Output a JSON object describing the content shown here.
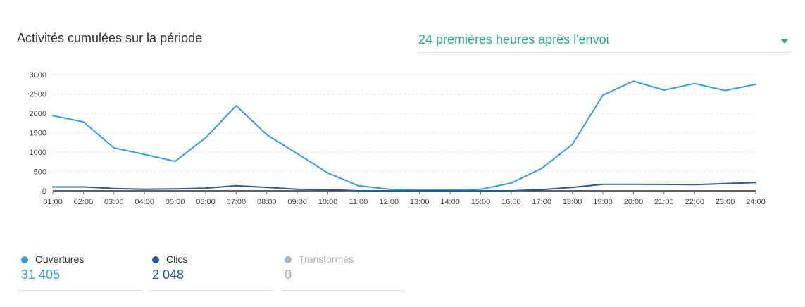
{
  "header": {
    "title": "Activités cumulées sur la période",
    "period": {
      "selected": "24 premières heures après l'envoi",
      "icon": "chevron-down-icon"
    }
  },
  "chart_data": {
    "type": "line",
    "title": "Activités cumulées sur la période",
    "xlabel": "",
    "ylabel": "",
    "categories": [
      "01:00",
      "02:00",
      "03:00",
      "04:00",
      "05:00",
      "06:00",
      "07:00",
      "08:00",
      "09:00",
      "10:00",
      "11:00",
      "12:00",
      "13:00",
      "14:00",
      "15:00",
      "16:00",
      "17:00",
      "18:00",
      "19:00",
      "20:00",
      "21:00",
      "22:00",
      "23:00",
      "24:00"
    ],
    "yticks": [
      "0",
      "500",
      "1000",
      "1500",
      "2000",
      "2500",
      "3000"
    ],
    "ylim": [
      0,
      3000
    ],
    "grid": true,
    "series": [
      {
        "name": "Ouvertures",
        "color": "#3a9be2",
        "values": [
          1940,
          1780,
          1110,
          940,
          760,
          1370,
          2200,
          1450,
          960,
          460,
          130,
          40,
          20,
          20,
          40,
          200,
          580,
          1200,
          2470,
          2830,
          2600,
          2770,
          2590,
          2750
        ]
      },
      {
        "name": "Clics",
        "color": "#2a5b8c",
        "values": [
          100,
          100,
          60,
          40,
          50,
          70,
          130,
          90,
          40,
          30,
          0,
          0,
          0,
          0,
          0,
          0,
          30,
          90,
          170,
          170,
          165,
          160,
          185,
          215
        ]
      }
    ]
  },
  "legend": [
    {
      "name": "Ouvertures",
      "total": "31 405",
      "color": "#3a9be2",
      "total_color": "#3a9be2",
      "muted": false
    },
    {
      "name": "Clics",
      "total": "2 048",
      "color": "#2a5b8c",
      "total_color": "#2a5b8c",
      "muted": false
    },
    {
      "name": "Transformés",
      "total": "0",
      "color": "#a9b3bd",
      "total_color": "#aab2bb",
      "muted": true
    }
  ]
}
